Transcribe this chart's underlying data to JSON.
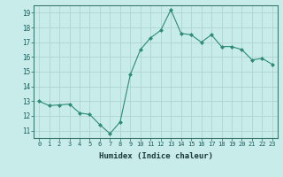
{
  "x": [
    0,
    1,
    2,
    3,
    4,
    5,
    6,
    7,
    8,
    9,
    10,
    11,
    12,
    13,
    14,
    15,
    16,
    17,
    18,
    19,
    20,
    21,
    22,
    23
  ],
  "y": [
    13.0,
    12.7,
    12.75,
    12.8,
    12.2,
    12.1,
    11.4,
    10.8,
    11.6,
    14.8,
    16.5,
    17.3,
    17.8,
    19.2,
    17.6,
    17.5,
    17.0,
    17.5,
    16.7,
    16.7,
    16.5,
    15.8,
    15.9,
    15.5
  ],
  "line_color": "#2e8b74",
  "marker": "D",
  "marker_size": 2.0,
  "bg_color": "#c8ecea",
  "grid_color": "#b0d4d0",
  "xlabel": "Humidex (Indice chaleur)",
  "xlim": [
    -0.5,
    23.5
  ],
  "ylim": [
    10.5,
    19.5
  ],
  "yticks": [
    11,
    12,
    13,
    14,
    15,
    16,
    17,
    18,
    19
  ],
  "xtick_labels": [
    "0",
    "1",
    "2",
    "3",
    "4",
    "5",
    "6",
    "7",
    "8",
    "9",
    "10",
    "11",
    "12",
    "13",
    "14",
    "15",
    "16",
    "17",
    "18",
    "19",
    "20",
    "21",
    "22",
    "23"
  ]
}
